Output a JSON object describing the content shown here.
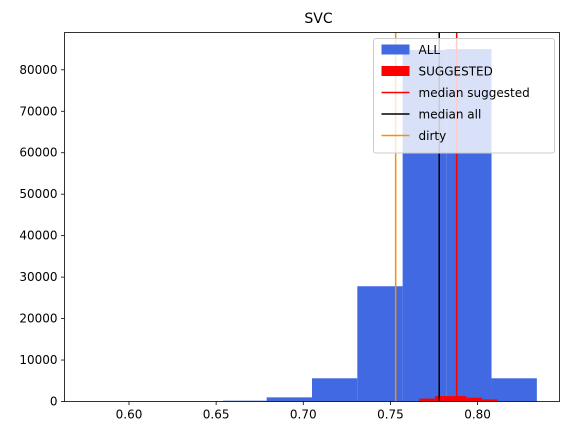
{
  "chart_data": {
    "type": "histogram",
    "title": "SVC",
    "xlabel": "",
    "ylabel": "",
    "xlim": [
      0.563,
      0.847
    ],
    "ylim": [
      0,
      89000
    ],
    "x_ticks": [
      0.6,
      0.65,
      0.7,
      0.75,
      0.8
    ],
    "x_tick_labels": [
      "0.60",
      "0.65",
      "0.70",
      "0.75",
      "0.80"
    ],
    "y_ticks": [
      0,
      10000,
      20000,
      30000,
      40000,
      50000,
      60000,
      70000,
      80000
    ],
    "y_tick_labels": [
      "0",
      "10000",
      "20000",
      "30000",
      "40000",
      "50000",
      "60000",
      "70000",
      "80000"
    ],
    "grid": false,
    "legend_position": "upper-right",
    "series": [
      {
        "name": "ALL",
        "kind": "bars",
        "color": "#4169e1",
        "bin_edges": [
          0.576,
          0.602,
          0.628,
          0.654,
          0.679,
          0.705,
          0.731,
          0.757,
          0.782,
          0.808,
          0.834
        ],
        "counts": [
          15,
          20,
          40,
          200,
          1000,
          5600,
          27800,
          84800,
          85000,
          5600
        ]
      },
      {
        "name": "SUGGESTED",
        "kind": "bars",
        "color": "#ff0000",
        "bin_edges": [
          0.7665,
          0.7755,
          0.7845,
          0.7935,
          0.8025,
          0.8115
        ],
        "counts": [
          700,
          1300,
          1300,
          900,
          500
        ]
      },
      {
        "name": "median suggested",
        "kind": "vline",
        "color": "#ff0000",
        "x": 0.788
      },
      {
        "name": "median all",
        "kind": "vline",
        "color": "#000000",
        "x": 0.778
      },
      {
        "name": "dirty",
        "kind": "vline",
        "color": "#ff8c00",
        "x": 0.753
      }
    ]
  }
}
